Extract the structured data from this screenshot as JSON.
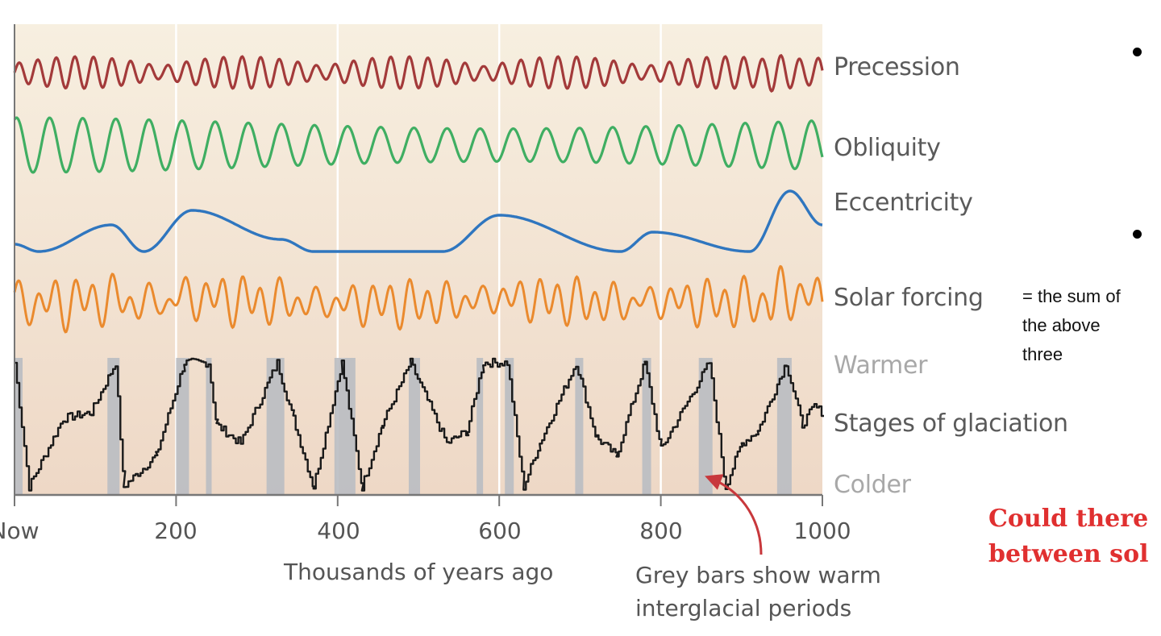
{
  "chart_data": {
    "type": "line",
    "title": "",
    "xlabel": "Thousands of years ago",
    "ylabel": "",
    "xlim": [
      0,
      1000
    ],
    "x_ticks": [
      0,
      200,
      400,
      600,
      800,
      1000
    ],
    "x_tick_labels": [
      "Now",
      "200",
      "400",
      "600",
      "800",
      "1000"
    ],
    "grid": {
      "vertical_lines_at": [
        200,
        400,
        600,
        800
      ],
      "color": "#ffffff"
    },
    "legend_position": "right (inline labels)",
    "series": [
      {
        "name": "Precession",
        "color": "#a33a3a",
        "period_kyr": 23,
        "relative_amplitude": "modulated, largest near 200 and 960 kyr, smallest near 400 kyr and 700 kyr"
      },
      {
        "name": "Obliquity",
        "color": "#3fae62",
        "period_kyr": 41,
        "relative_amplitude": "regular, slightly modulated"
      },
      {
        "name": "Eccentricity",
        "color": "#2f76bf",
        "period_kyr": 100,
        "peaks_kyr": [
          120,
          220,
          330,
          600,
          790,
          960
        ],
        "troughs_kyr": [
          30,
          160,
          370,
          530,
          750,
          910
        ]
      },
      {
        "name": "Solar forcing",
        "color": "#ea8a2e",
        "note": "= the sum of the above three"
      },
      {
        "name": "Stages of glaciation",
        "color": "#1a1a1a",
        "upper_label": "Warmer",
        "lower_label": "Colder",
        "interglacial_peaks_kyr": [
          0,
          125,
          210,
          240,
          325,
          405,
          490,
          580,
          610,
          695,
          780,
          860,
          955
        ],
        "glacial_minima_kyr": [
          18,
          135,
          370,
          430,
          630,
          880
        ]
      }
    ],
    "interglacial_bars_kyr": [
      [
        0,
        10
      ],
      [
        115,
        130
      ],
      [
        200,
        216
      ],
      [
        237,
        244
      ],
      [
        312,
        334
      ],
      [
        396,
        422
      ],
      [
        488,
        502
      ],
      [
        572,
        580
      ],
      [
        607,
        618
      ],
      [
        694,
        704
      ],
      [
        777,
        788
      ],
      [
        847,
        864
      ],
      [
        944,
        962
      ]
    ],
    "annotations": [
      {
        "text": "Grey bars show warm interglacial periods",
        "points_to_kyr": 860,
        "arrow_color": "#c8383c"
      }
    ]
  },
  "labels": {
    "precession": "Precession",
    "obliquity": "Obliquity",
    "eccentricity": "Eccentricity",
    "solar": "Solar forcing",
    "warmer": "Warmer",
    "glaciation": "Stages of glaciation",
    "colder": "Colder"
  },
  "axis": {
    "ticks": [
      "Now",
      "200",
      "400",
      "600",
      "800",
      "1000"
    ],
    "title": "Thousands of years ago",
    "annotation_line1": "Grey bars show warm",
    "annotation_line2": "interglacial periods"
  },
  "slide": {
    "note_line1": "= the sum of",
    "note_line2": "the above",
    "note_line3": "three",
    "question_line1": "Could there",
    "question_line2": "between sol"
  },
  "colors": {
    "precession": "#a33a3a",
    "obliquity": "#3fae62",
    "eccentricity": "#2f76bf",
    "solar": "#ea8a2e",
    "glaciation": "#1a1a1a",
    "bars": "#b9bcc2",
    "bg_top": "#f7efe0",
    "bg_bottom": "#eed8c6",
    "arrow": "#c8383c",
    "question": "#e03030"
  }
}
